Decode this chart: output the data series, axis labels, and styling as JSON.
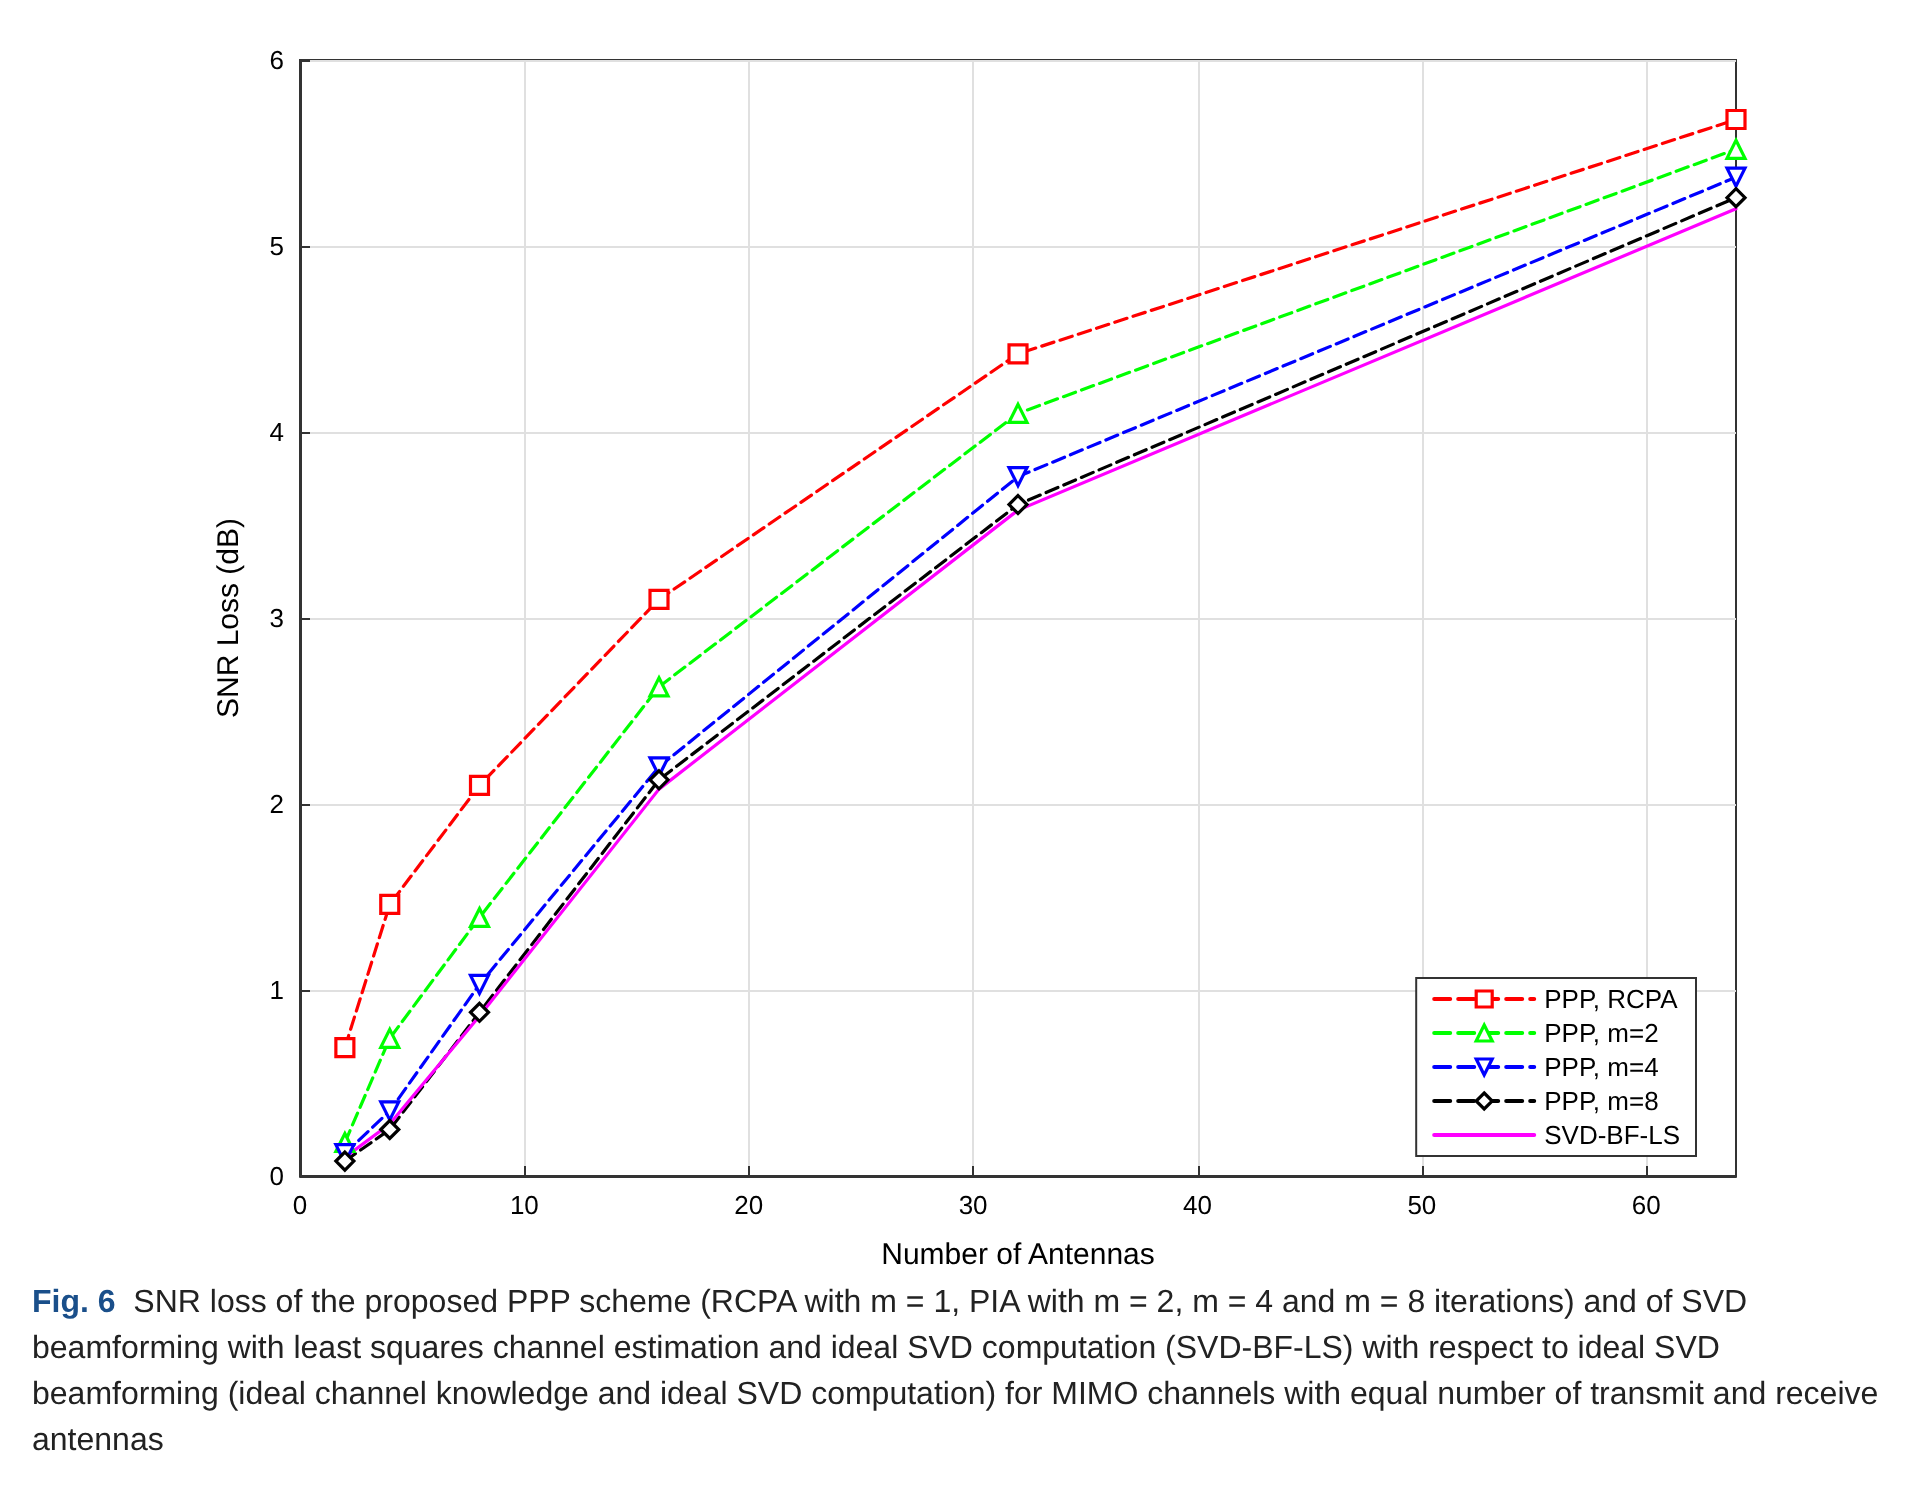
{
  "chart_data": {
    "type": "line",
    "xlabel": "Number of Antennas",
    "ylabel": "SNR Loss (dB)",
    "x": [
      2,
      4,
      8,
      16,
      32,
      64
    ],
    "series": [
      {
        "name": "PPP, RCPA",
        "color": "#ff0000",
        "marker": "square",
        "line_style": "dashed",
        "values": [
          0.69,
          1.46,
          2.1,
          3.1,
          4.42,
          5.68
        ]
      },
      {
        "name": "PPP, m=2",
        "color": "#00ff00",
        "marker": "triangle",
        "line_style": "dashed",
        "values": [
          0.18,
          0.74,
          1.39,
          2.63,
          4.1,
          5.52
        ]
      },
      {
        "name": "PPP, m=4",
        "color": "#0000ff",
        "marker": "triangle-down",
        "line_style": "dashed",
        "values": [
          0.12,
          0.35,
          1.03,
          2.2,
          3.76,
          5.37
        ]
      },
      {
        "name": "PPP, m=8",
        "color": "#000000",
        "marker": "diamond",
        "line_style": "dashed",
        "values": [
          0.08,
          0.25,
          0.88,
          2.13,
          3.61,
          5.26
        ]
      },
      {
        "name": "SVD-BF-LS",
        "color": "#ff00ff",
        "marker": "none",
        "line_style": "solid",
        "values": [
          0.1,
          0.28,
          0.86,
          2.08,
          3.58,
          5.2
        ]
      }
    ],
    "xlim": [
      0,
      64
    ],
    "xticks": [
      0,
      10,
      20,
      30,
      40,
      50,
      60
    ],
    "ylim": [
      0,
      6
    ],
    "yticks": [
      0,
      1,
      2,
      3,
      4,
      5,
      6
    ],
    "grid": true,
    "legend": "bottom right",
    "annotations": [
      "Fig. 6",
      "SNR loss of the proposed PPP scheme (RCPA with m = 1, PIA with m = 2, m = 4 and m = 8 iterations) and of SVD beamforming with least squares channel estimation and ideal SVD computation (SVD-BF-LS) with respect to ideal SVD beamforming (ideal channel knowledge and ideal SVD computation) for MIMO channels with equal number of transmit and receive antennas"
    ]
  }
}
